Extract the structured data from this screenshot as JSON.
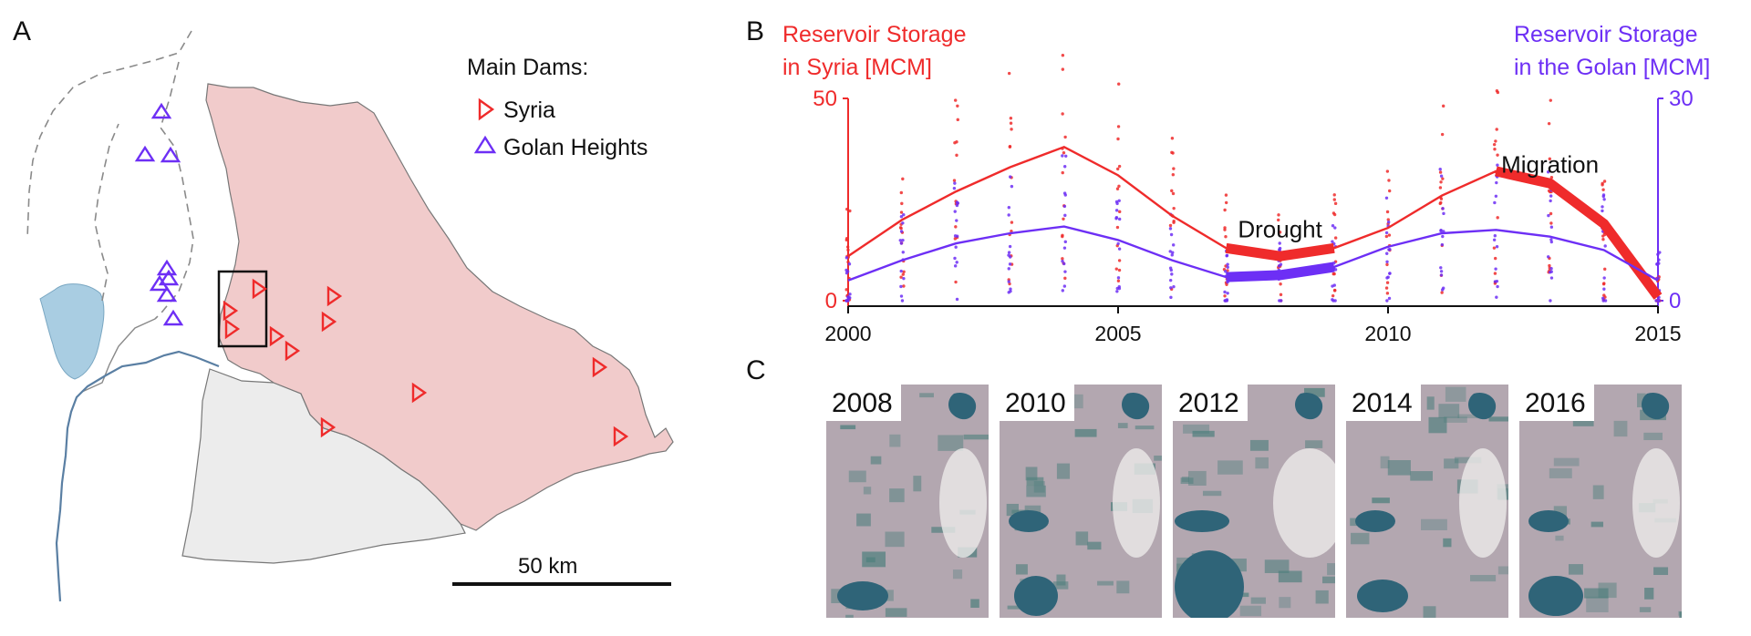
{
  "panels": {
    "a": "A",
    "b": "B",
    "c": "C"
  },
  "map": {
    "legend_title": "Main Dams:",
    "legend_syria": "Syria",
    "legend_golan": "Golan Heights",
    "scale_label": "50 km",
    "colors": {
      "syria_region": "#f1cbcb",
      "other_region": "#ececec",
      "lake": "#a9cde2",
      "river": "#5a7fa3",
      "syria_dam": "#ef2b2b",
      "golan_dam": "#6d2ff5"
    },
    "icons": {
      "syria_dam": "triangle-right-icon",
      "golan_dam": "triangle-up-icon"
    }
  },
  "chart_data": {
    "type": "line",
    "title": "",
    "xlabel": "",
    "x": [
      2000,
      2001,
      2002,
      2003,
      2004,
      2005,
      2006,
      2007,
      2008,
      2009,
      2010,
      2011,
      2012,
      2013,
      2014,
      2015
    ],
    "xlim": [
      2000,
      2015
    ],
    "xticks": [
      2000,
      2005,
      2010,
      2015
    ],
    "y_left": {
      "label_line1": "Reservoir Storage",
      "label_line2": "in Syria [MCM]",
      "lim": [
        0,
        50
      ],
      "ticks": [
        0,
        50
      ],
      "color": "#ef2b2b"
    },
    "y_right": {
      "label_line1": "Reservoir Storage",
      "label_line2": "in the Golan [MCM]",
      "lim": [
        0,
        30
      ],
      "ticks": [
        0,
        30
      ],
      "color": "#6d2ff5"
    },
    "series": [
      {
        "axis": "left",
        "color": "#ef2b2b",
        "values": [
          11,
          20,
          27,
          33,
          38,
          31,
          21,
          13,
          11,
          13,
          18,
          26,
          32,
          29,
          19,
          1
        ],
        "highlight": [
          [
            2007,
            2009
          ],
          [
            2012,
            2015
          ]
        ]
      },
      {
        "axis": "right",
        "color": "#6d2ff5",
        "values": [
          3,
          6,
          8.5,
          10,
          11,
          9,
          6,
          3.5,
          3.8,
          5,
          8,
          10,
          10.5,
          9.5,
          7.5,
          3
        ],
        "highlight": [
          [
            2007,
            2009
          ]
        ]
      }
    ],
    "annotations": [
      {
        "text": "Drought",
        "x": 2008,
        "y": 17.5,
        "axis": "left"
      },
      {
        "text": "Migration",
        "x": 2013,
        "y": 33.5,
        "axis": "left"
      }
    ]
  },
  "satellite": {
    "years": [
      "2008",
      "2010",
      "2012",
      "2014",
      "2016"
    ],
    "colors": {
      "land": "#b3a7b0",
      "field": "#4f7f7d",
      "water": "#2f6478",
      "bright": "#ecebea"
    }
  }
}
